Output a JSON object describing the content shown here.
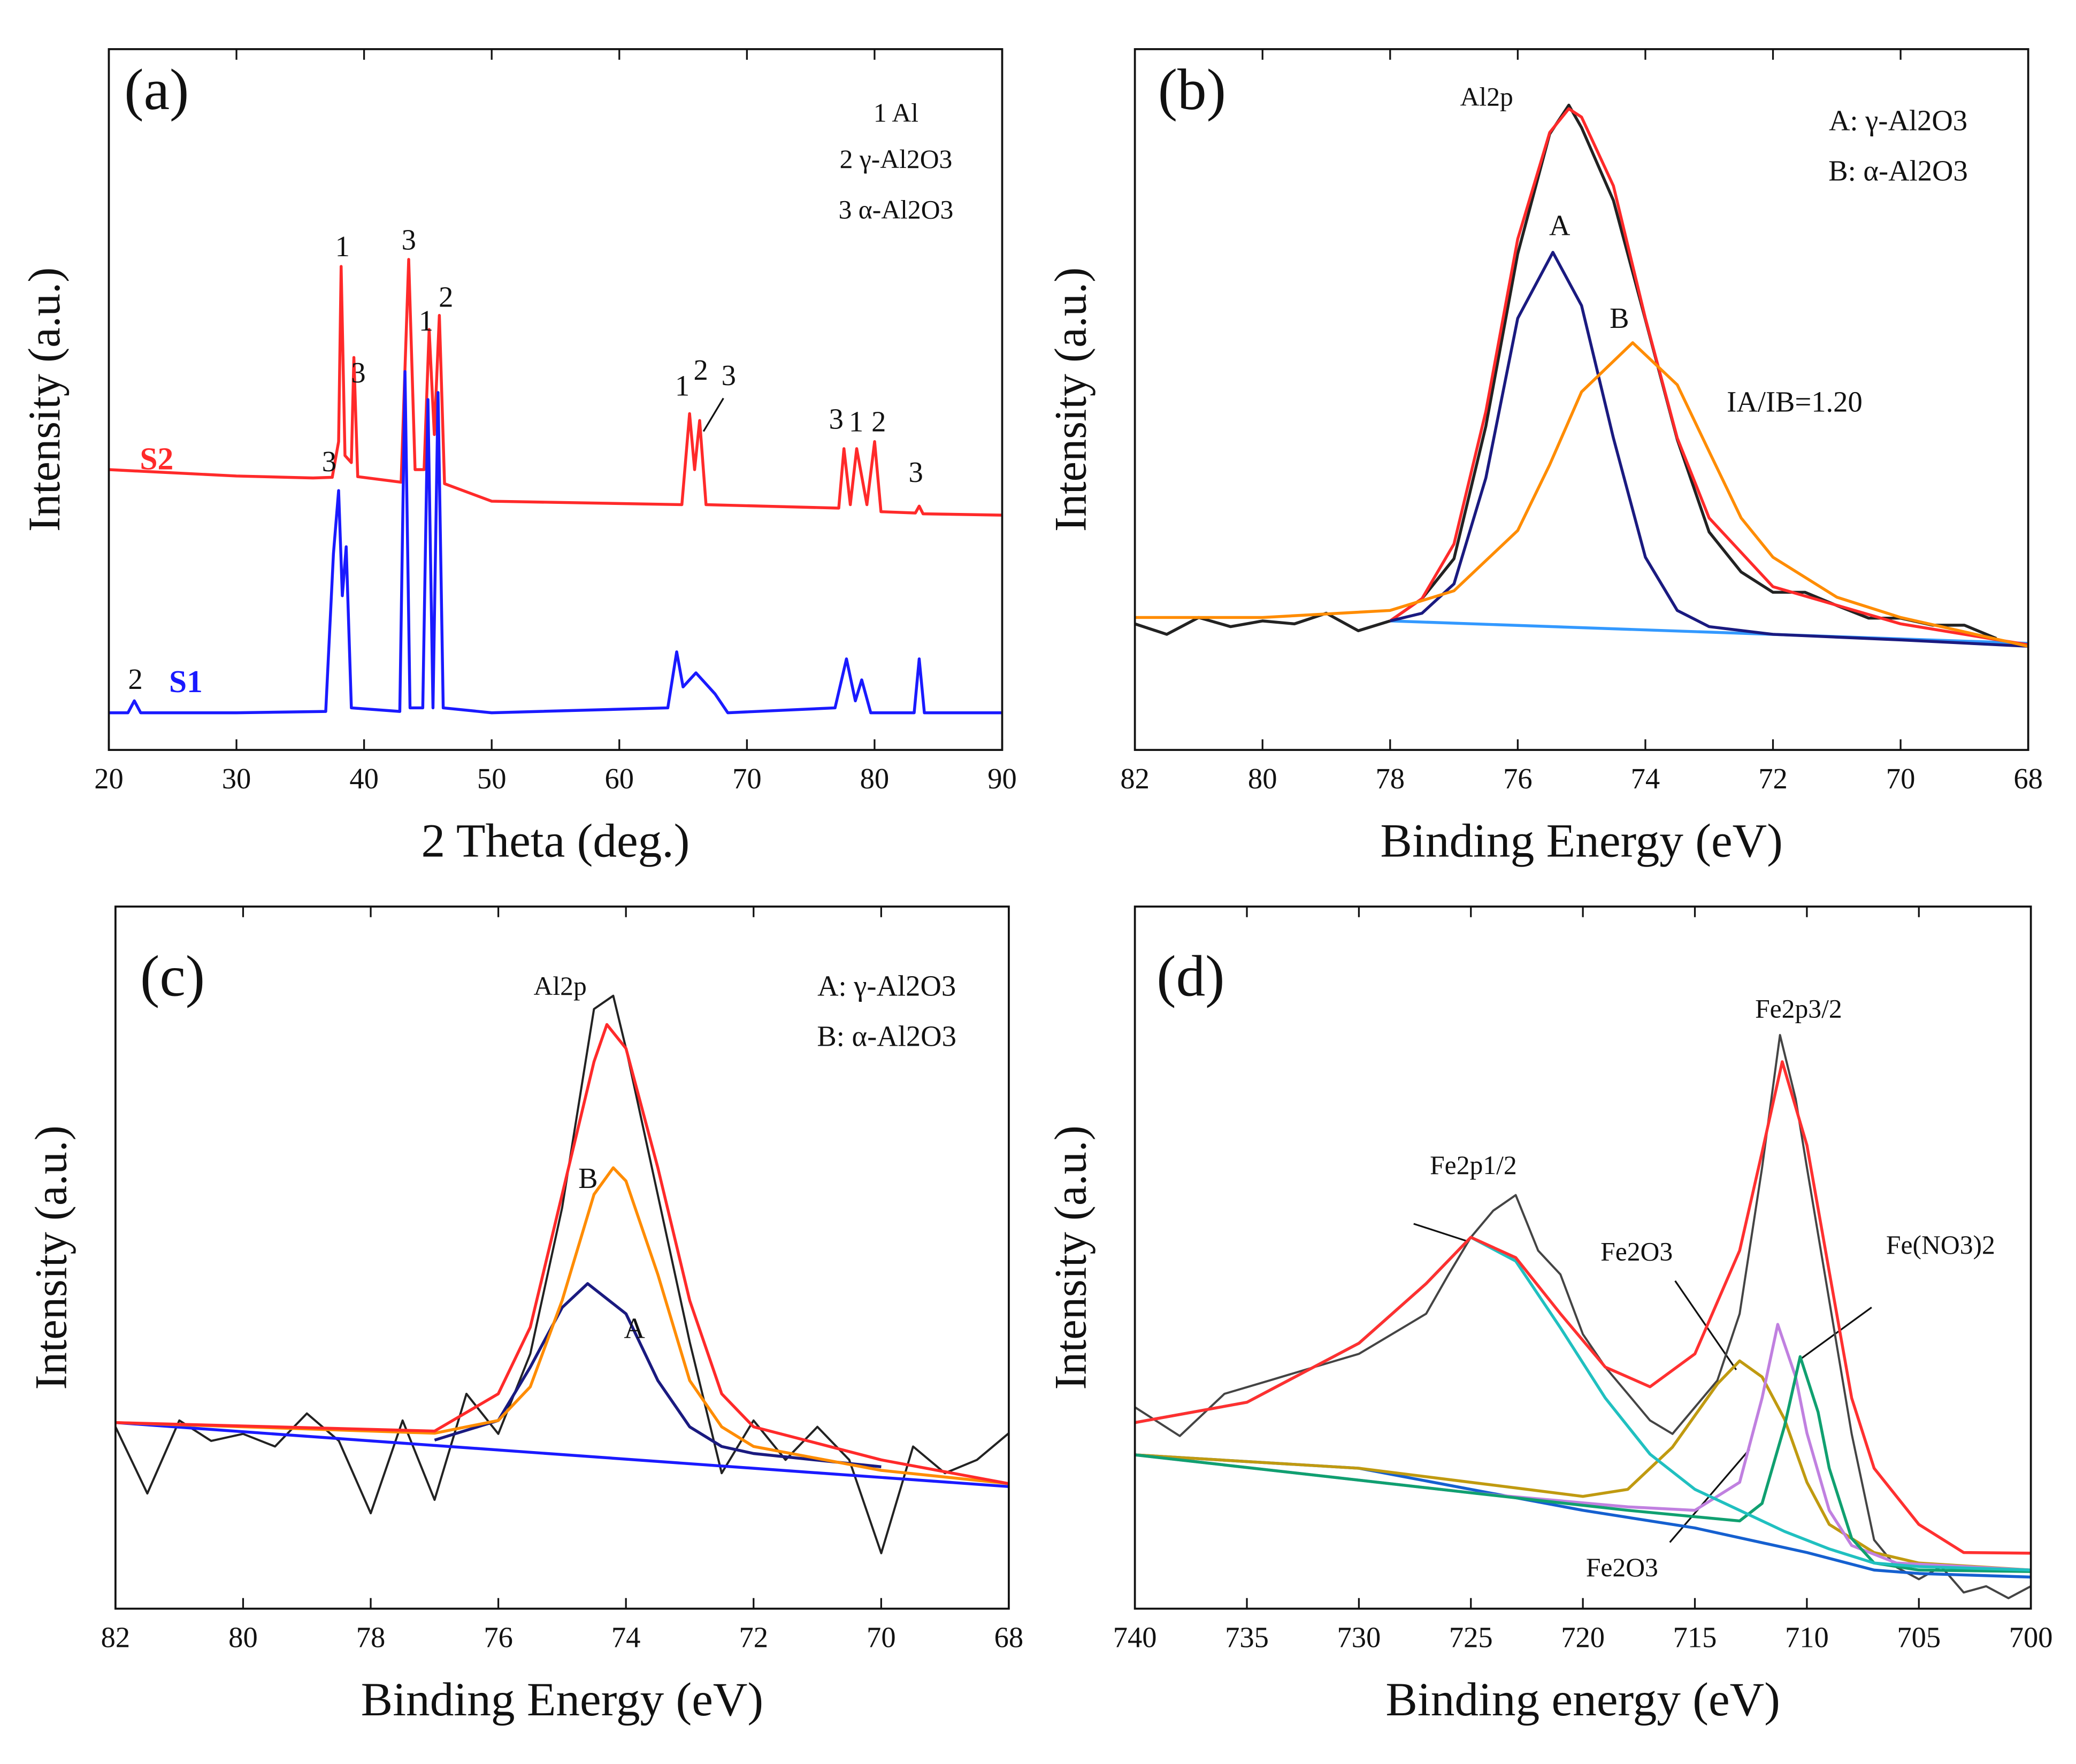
{
  "chart_data": [
    {
      "type": "line",
      "panel_label": "(a)",
      "xlabel": "2 Theta (deg.)",
      "ylabel": "Intensity (a.u.)",
      "xlim": [
        20,
        90
      ],
      "xticks": [
        20,
        30,
        40,
        50,
        60,
        70,
        80,
        90
      ],
      "ylim": [
        0,
        100
      ],
      "series": [
        {
          "name": "S2",
          "color": "#ff2a2a",
          "x": [
            20,
            30,
            36,
            37.5,
            38.0,
            38.2,
            38.5,
            39.0,
            39.2,
            39.5,
            42.9,
            43.5,
            44.0,
            44.7,
            45.1,
            45.5,
            45.9,
            46.3,
            50,
            64.9,
            65.5,
            65.9,
            66.3,
            66.8,
            77.2,
            77.6,
            78.1,
            78.6,
            79.4,
            80.0,
            80.5,
            83.2,
            83.5,
            83.8,
            90
          ],
          "values": [
            40,
            39.1,
            38.8,
            38.9,
            44,
            69,
            42,
            41,
            56,
            39,
            38.2,
            70,
            40,
            40,
            60,
            45,
            62,
            38,
            35.5,
            35,
            48,
            40,
            47,
            35,
            34.5,
            43,
            35,
            43,
            35,
            44,
            34,
            33.8,
            34.8,
            33.7,
            33.5
          ]
        },
        {
          "name": "S1",
          "color": "#1a1aff",
          "x": [
            20,
            21.5,
            22,
            22.5,
            30,
            37,
            37.6,
            38.0,
            38.3,
            38.6,
            39.0,
            42.8,
            43.2,
            43.6,
            44.6,
            45.0,
            45.4,
            45.8,
            46.2,
            50,
            63.8,
            64.5,
            65.0,
            66.0,
            67.5,
            68.5,
            76.9,
            77.8,
            78.5,
            79.0,
            79.7,
            83.1,
            83.5,
            83.9,
            90
          ],
          "values": [
            5.3,
            5.3,
            7,
            5.3,
            5.3,
            5.5,
            28,
            37,
            22,
            29,
            6,
            5.5,
            54,
            6,
            6,
            50,
            6,
            51,
            6,
            5.3,
            6,
            14,
            9,
            11,
            8,
            5.3,
            6,
            13,
            7,
            10,
            5.3,
            5.3,
            13,
            5.3,
            5.3
          ]
        }
      ],
      "annotations": [
        "1 Al",
        "2 γ-Al2O3",
        "3 α-Al2O3",
        "1",
        "3",
        "3",
        "1",
        "2",
        "3",
        "1",
        "2",
        "3",
        "3",
        "1",
        "2",
        "3",
        "2"
      ]
    },
    {
      "type": "line",
      "panel_label": "(b)",
      "xlabel": "Binding Energy (eV)",
      "ylabel": "Intensity (a.u.)",
      "xlim": [
        82,
        68
      ],
      "xticks": [
        82,
        80,
        78,
        76,
        74,
        72,
        70,
        68
      ],
      "ylim": [
        0,
        100
      ],
      "series": [
        {
          "color": "#3399ff",
          "x": [
            78,
            68
          ],
          "values": [
            18.4,
            15.2
          ]
        },
        {
          "color": "#222222",
          "x": [
            82,
            81.5,
            81,
            80.5,
            80,
            79.5,
            79,
            78.5,
            78,
            77.5,
            77,
            76.5,
            76,
            75.5,
            75.2,
            75,
            74.5,
            74,
            73.5,
            73,
            72.5,
            72,
            71.5,
            71,
            70.5,
            70,
            69.5,
            69,
            68.5
          ],
          "values": [
            18.0,
            16.5,
            18.9,
            17.6,
            18.4,
            18.0,
            19.5,
            17.0,
            18.4,
            21.6,
            27.3,
            46.2,
            70.8,
            87.9,
            92.0,
            88.8,
            78.4,
            61.4,
            44.3,
            31.1,
            25.4,
            22.5,
            22.5,
            20.6,
            18.8,
            18.8,
            17.8,
            17.8,
            15.9
          ]
        },
        {
          "color": "#ff2a2a",
          "x": [
            78,
            77.5,
            77,
            76.5,
            76,
            75.5,
            75.2,
            75,
            74.5,
            74,
            73.5,
            73,
            72,
            70,
            68
          ],
          "values": [
            18.4,
            21.6,
            29.4,
            48.3,
            72.9,
            88.1,
            91.5,
            90.3,
            80.5,
            61.6,
            44.5,
            33.1,
            23.3,
            18.0,
            15.0
          ]
        },
        {
          "color": "#1a1a80",
          "x": [
            78,
            77.5,
            77,
            76.5,
            76,
            75.45,
            75,
            74.5,
            74,
            73.5,
            73,
            72,
            70,
            68
          ],
          "values": [
            18.4,
            19.5,
            23.7,
            38.8,
            61.6,
            71.0,
            63.4,
            44.5,
            27.5,
            19.9,
            17.6,
            16.5,
            15.7,
            14.8
          ]
        },
        {
          "color": "#ff8c00",
          "x": [
            82,
            80,
            78,
            77,
            76,
            75.5,
            75,
            74.2,
            73.5,
            73,
            72.5,
            72,
            71,
            70,
            68
          ],
          "values": [
            18.9,
            18.9,
            19.9,
            22.7,
            31.3,
            40.7,
            51.1,
            58.1,
            52.1,
            42.6,
            33.1,
            27.5,
            21.8,
            18.9,
            14.8
          ]
        }
      ],
      "annotations": [
        "Al2p",
        "A",
        "B",
        "IA/IB=1.20",
        "A: γ-Al2O3",
        "B: α-Al2O3"
      ]
    },
    {
      "type": "line",
      "panel_label": "(c)",
      "xlabel": "Binding Energy (eV)",
      "ylabel": "Intensity (a.u.)",
      "xlim": [
        82,
        68
      ],
      "xticks": [
        82,
        80,
        78,
        76,
        74,
        72,
        70,
        68
      ],
      "ylim": [
        0,
        100
      ],
      "series": [
        {
          "color": "#222222",
          "x": [
            82,
            81.5,
            81,
            80.5,
            80,
            79.5,
            79,
            78.5,
            78,
            77.5,
            77,
            76.5,
            76,
            75.5,
            75,
            74.5,
            74.2,
            74,
            73.5,
            73,
            72.5,
            72,
            71.5,
            71,
            70.5,
            70,
            69.5,
            69,
            68.5,
            68
          ],
          "values": [
            25.9,
            16.4,
            26.8,
            23.9,
            24.9,
            23.1,
            27.8,
            23.9,
            13.6,
            26.8,
            15.5,
            30.6,
            24.9,
            36.3,
            57.1,
            85.4,
            87.3,
            79.8,
            58.9,
            38.0,
            19.3,
            26.8,
            21.2,
            25.9,
            21.2,
            7.9,
            23.1,
            19.3,
            21.2,
            25.0
          ]
        },
        {
          "color": "#1a1aff",
          "x": [
            82,
            68
          ],
          "values": [
            26.5,
            17.4
          ]
        },
        {
          "color": "#1a1a80",
          "x": [
            77,
            76,
            75.5,
            75,
            74.6,
            74,
            73.5,
            73,
            72.5,
            72,
            70
          ],
          "values": [
            24.0,
            26.8,
            34.4,
            42.9,
            46.3,
            42.0,
            32.5,
            25.9,
            23.1,
            22.1,
            20.2
          ]
        },
        {
          "color": "#ff8c00",
          "x": [
            82,
            77,
            76,
            75.5,
            75,
            74.5,
            74.2,
            74,
            73.5,
            73,
            72.5,
            72,
            70,
            68
          ],
          "values": [
            26.5,
            25.0,
            26.8,
            31.6,
            43.9,
            59.0,
            62.8,
            60.9,
            47.6,
            32.5,
            25.9,
            23.1,
            19.7,
            17.8
          ]
        },
        {
          "color": "#ff2a2a",
          "x": [
            82,
            77,
            76,
            75.5,
            75,
            74.5,
            74.3,
            74,
            73.5,
            73,
            72.5,
            72,
            70,
            68
          ],
          "values": [
            26.5,
            25.3,
            30.6,
            40.1,
            59.0,
            77.9,
            83.2,
            79.8,
            62.8,
            43.9,
            30.6,
            25.9,
            21.2,
            17.8
          ]
        }
      ],
      "annotations": [
        "Al2p",
        "B",
        "A",
        "A: γ-Al2O3",
        "B: α-Al2O3"
      ]
    },
    {
      "type": "line",
      "panel_label": "(d)",
      "xlabel": "Binding energy (eV)",
      "ylabel": "Intensity (a.u.)",
      "xlim": [
        740,
        700
      ],
      "xticks": [
        740,
        735,
        730,
        725,
        720,
        715,
        710,
        705,
        700
      ],
      "ylim": [
        0,
        100
      ],
      "series": [
        {
          "color": "#444444",
          "x": [
            740,
            738,
            736,
            734,
            732,
            730,
            728,
            727,
            726,
            725,
            724,
            723,
            722,
            721,
            720,
            719,
            718,
            717,
            716,
            715,
            714,
            713,
            712,
            711.2,
            710.5,
            710,
            709,
            708,
            707,
            706,
            705,
            704,
            703,
            702,
            701,
            700
          ],
          "values": [
            28.7,
            24.6,
            30.6,
            32.5,
            34.4,
            36.3,
            40.1,
            42.0,
            47.6,
            52.9,
            56.7,
            58.9,
            51.0,
            47.6,
            39.1,
            34.4,
            30.6,
            26.8,
            24.9,
            28.7,
            32.5,
            42.0,
            62.8,
            81.7,
            72.6,
            62.8,
            43.9,
            24.9,
            9.8,
            5.9,
            4.2,
            6.0,
            2.3,
            3.2,
            1.5,
            3.2
          ]
        },
        {
          "color": "#1560d0",
          "x": [
            740,
            730,
            725,
            720,
            715,
            710,
            707,
            705,
            700
          ],
          "values": [
            21.9,
            20.0,
            17.0,
            14.0,
            11.5,
            8.0,
            5.5,
            5.0,
            4.5
          ]
        },
        {
          "color": "#c09a10",
          "x": [
            740,
            730,
            725,
            720,
            718,
            716,
            714,
            713,
            712,
            711,
            710,
            709,
            707,
            705,
            700
          ],
          "values": [
            21.9,
            20.0,
            18.0,
            16.0,
            17.0,
            23.0,
            32.0,
            35.3,
            33.0,
            27.0,
            18.0,
            12.0,
            8.0,
            6.5,
            5.5
          ]
        },
        {
          "color": "#c080e0",
          "x": [
            740,
            725,
            718,
            715,
            713,
            712,
            711.3,
            710.5,
            710,
            709,
            708,
            706,
            700
          ],
          "values": [
            21.9,
            16.5,
            14.5,
            14.0,
            18.0,
            30.0,
            40.5,
            33.0,
            25.0,
            14.0,
            9.0,
            6.5,
            5.5
          ]
        },
        {
          "color": "#10a070",
          "x": [
            740,
            725,
            718,
            713,
            712,
            711,
            710.3,
            709.5,
            709,
            708,
            707,
            705,
            700
          ],
          "values": [
            21.9,
            16.5,
            14.0,
            12.5,
            15.0,
            26.0,
            35.9,
            28.0,
            20.0,
            10.0,
            6.5,
            5.5,
            5.3
          ]
        },
        {
          "color": "#20c0c0",
          "x": [
            740,
            735,
            730,
            727,
            725,
            723,
            721,
            719,
            717,
            715,
            713,
            711,
            709,
            707,
            705,
            700
          ],
          "values": [
            26.5,
            29.4,
            37.8,
            46.3,
            52.9,
            49.5,
            40.0,
            30.0,
            22.0,
            17.0,
            14.0,
            11.0,
            8.5,
            6.5,
            6.0,
            5.5
          ]
        },
        {
          "color": "#ff3030",
          "x": [
            740,
            735,
            730,
            727,
            725,
            723,
            721,
            719,
            717,
            715,
            713,
            712,
            711.1,
            710,
            709,
            708,
            707,
            705,
            703,
            700
          ],
          "values": [
            26.5,
            29.4,
            37.8,
            46.3,
            52.9,
            50.0,
            42.0,
            34.4,
            31.6,
            36.3,
            51.0,
            65.0,
            77.9,
            66.0,
            48.0,
            30.0,
            20.0,
            12.0,
            8.0,
            7.9
          ]
        }
      ],
      "annotations": [
        "Fe2p3/2",
        "Fe2p1/2",
        "Fe2O3",
        "Fe(NO3)2",
        "Fe2O3"
      ]
    }
  ]
}
